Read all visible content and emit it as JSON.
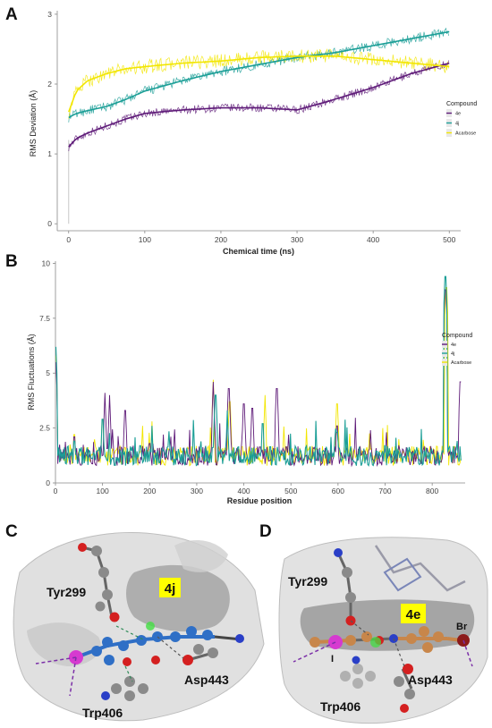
{
  "colors": {
    "c4e": "#5e1a78",
    "c4j": "#1a9e96",
    "cAcarbose": "#f2e600",
    "grid_bg": "#ffffff",
    "highlight": "#ffff00",
    "ligand_4j": "#2f6fc6",
    "ligand_4e": "#c8864a",
    "iodine": "#d63ad0",
    "oxygen": "#d42020",
    "nitrogen": "#2a3fc7",
    "bromine": "#8b1a1a",
    "carbon": "#8a8a8a"
  },
  "panels": {
    "A": {
      "letter": "A"
    },
    "B": {
      "letter": "B"
    },
    "C": {
      "letter": "C",
      "residues": [
        "Tyr299",
        "Asp443",
        "Trp406"
      ],
      "ligand": "4j"
    },
    "D": {
      "letter": "D",
      "residues": [
        "Tyr299",
        "Asp443",
        "Trp406"
      ],
      "ligand": "4e",
      "atoms": [
        "Br",
        "I"
      ]
    }
  },
  "chart_data": [
    {
      "type": "line",
      "panel": "A",
      "xlabel": "Chemical  time (ns)",
      "ylabel": "RMS Deviation (Å)",
      "xlim": [
        -15,
        515
      ],
      "ylim": [
        -0.1,
        3.05
      ],
      "xticks": [
        0,
        100,
        200,
        300,
        400,
        500
      ],
      "yticks": [
        0,
        1,
        2,
        3
      ],
      "grid": false,
      "legend": {
        "title": "Compound",
        "position": "right",
        "entries": [
          "4e",
          "4j",
          "Acarbose"
        ]
      },
      "series": [
        {
          "name": "4e",
          "color": "#5e1a78",
          "noise": 0.06,
          "x": [
            0,
            10,
            25,
            50,
            75,
            100,
            150,
            200,
            250,
            300,
            340,
            400,
            450,
            500
          ],
          "values": [
            1.1,
            1.22,
            1.3,
            1.4,
            1.5,
            1.58,
            1.63,
            1.66,
            1.66,
            1.63,
            1.75,
            1.95,
            2.15,
            2.3
          ]
        },
        {
          "name": "4j",
          "color": "#1a9e96",
          "noise": 0.07,
          "x": [
            0,
            10,
            25,
            50,
            75,
            100,
            150,
            200,
            250,
            300,
            350,
            400,
            450,
            500
          ],
          "values": [
            1.52,
            1.58,
            1.62,
            1.68,
            1.78,
            1.9,
            2.05,
            2.18,
            2.28,
            2.38,
            2.45,
            2.55,
            2.65,
            2.75
          ]
        },
        {
          "name": "Acarbose",
          "color": "#f2e600",
          "noise": 0.1,
          "x": [
            0,
            10,
            25,
            50,
            75,
            100,
            150,
            200,
            250,
            300,
            350,
            400,
            450,
            500
          ],
          "values": [
            1.6,
            1.9,
            2.05,
            2.15,
            2.22,
            2.25,
            2.3,
            2.33,
            2.38,
            2.4,
            2.4,
            2.35,
            2.3,
            2.25
          ]
        }
      ]
    },
    {
      "type": "line",
      "panel": "B",
      "xlabel": "Residue position",
      "ylabel": "RMS Fluctuations (Å)",
      "xlim": [
        0,
        870
      ],
      "ylim": [
        0,
        10.1
      ],
      "xticks": [
        0,
        100,
        200,
        300,
        400,
        500,
        600,
        700,
        800
      ],
      "yticks": [
        0,
        2.5,
        5,
        7.5,
        10
      ],
      "ytick_labels": [
        "0",
        "2.5",
        "5",
        "7.5",
        "10"
      ],
      "grid": false,
      "legend": {
        "title": "Compound",
        "position": "right",
        "entries": [
          "4e",
          "4j",
          "Acarbose"
        ]
      },
      "baseline": 1.1,
      "series": [
        {
          "name": "Acarbose",
          "color": "#f2e600",
          "peaks": [
            [
              1,
              5.8
            ],
            [
              40,
              2.8
            ],
            [
              100,
              3.5
            ],
            [
              185,
              2.6
            ],
            [
              205,
              2.8
            ],
            [
              335,
              4.7
            ],
            [
              370,
              4.3
            ],
            [
              445,
              4.0
            ],
            [
              598,
              4.2
            ],
            [
              695,
              2.5
            ],
            [
              830,
              9.5
            ]
          ]
        },
        {
          "name": "4e",
          "color": "#5e1a78",
          "peaks": [
            [
              1,
              5.5
            ],
            [
              40,
              2.7
            ],
            [
              105,
              4.1
            ],
            [
              115,
              4.0
            ],
            [
              148,
              3.9
            ],
            [
              200,
              2.4
            ],
            [
              335,
              4.6
            ],
            [
              368,
              4.9
            ],
            [
              400,
              4.2
            ],
            [
              418,
              4.0
            ],
            [
              470,
              4.9
            ],
            [
              598,
              3.2
            ],
            [
              700,
              2.0
            ],
            [
              828,
              9.4
            ],
            [
              860,
              5.2
            ]
          ]
        },
        {
          "name": "4j",
          "color": "#1a9e96",
          "peaks": [
            [
              1,
              6.2
            ],
            [
              40,
              2.5
            ],
            [
              100,
              3.5
            ],
            [
              180,
              2.3
            ],
            [
              205,
              2.6
            ],
            [
              340,
              4.6
            ],
            [
              365,
              3.3
            ],
            [
              440,
              3.3
            ],
            [
              598,
              2.9
            ],
            [
              700,
              2.3
            ],
            [
              828,
              10.0
            ]
          ]
        }
      ]
    }
  ]
}
